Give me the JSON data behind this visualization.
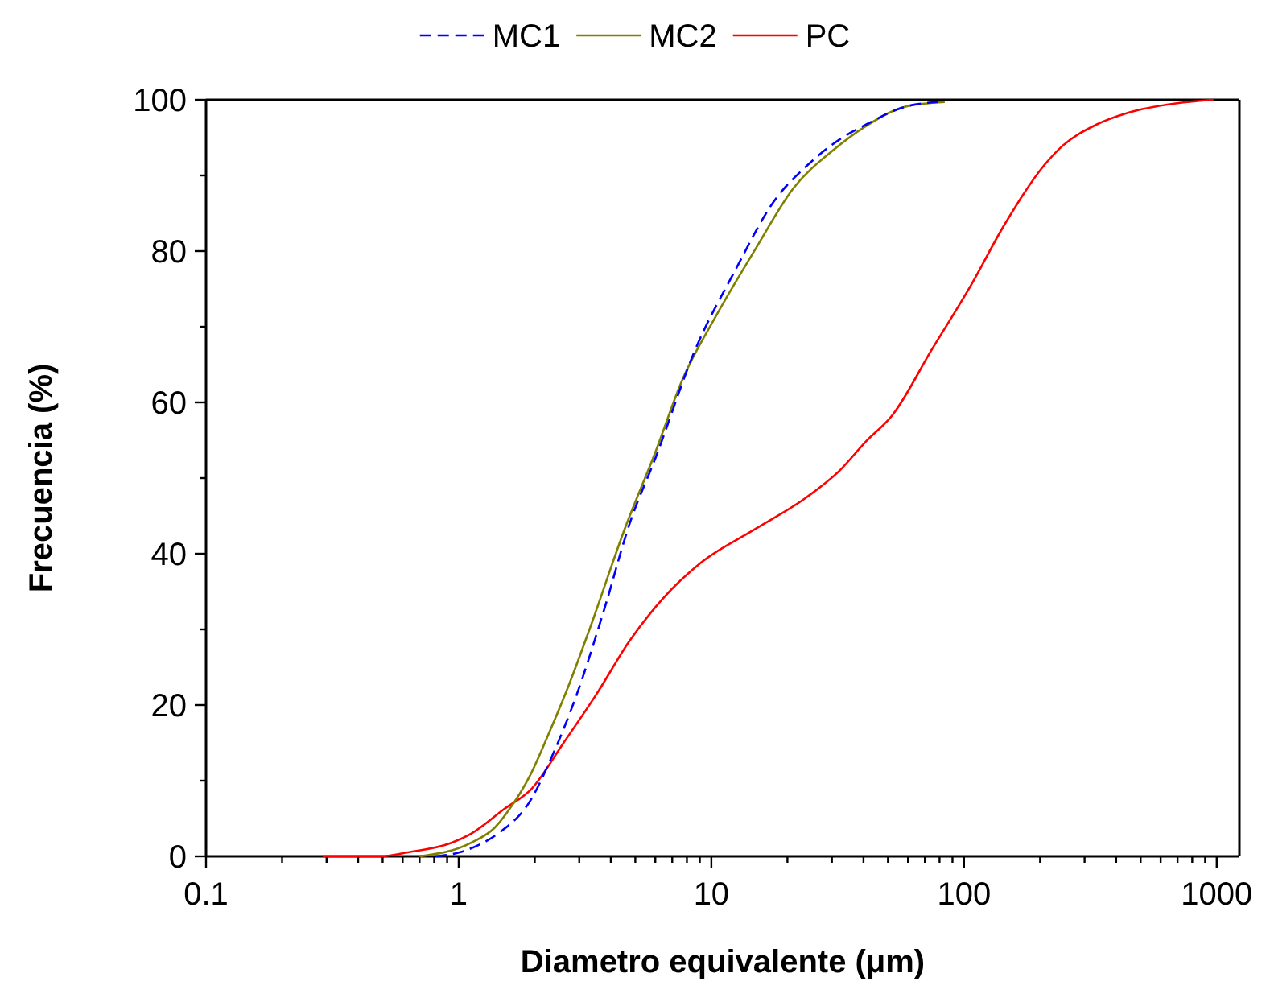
{
  "chart_data": {
    "type": "line",
    "xlabel": "Diametro equivalente (μm)",
    "ylabel": "Frecuencia (%)",
    "log": "x",
    "legend": "top",
    "grid": false,
    "marker": "none",
    "xlim": [
      0.1,
      1230
    ],
    "ylim": [
      0,
      100
    ],
    "xticks": [
      0.1,
      {
        "value": 0.2,
        "label": null
      },
      {
        "value": 0.3,
        "label": null
      },
      {
        "value": 0.4,
        "label": null
      },
      {
        "value": 0.5,
        "label": null
      },
      {
        "value": 0.6,
        "label": null
      },
      {
        "value": 0.7,
        "label": null
      },
      {
        "value": 0.8,
        "label": null
      },
      {
        "value": 0.9,
        "label": null
      },
      1,
      {
        "value": 2,
        "label": null
      },
      {
        "value": 3,
        "label": null
      },
      {
        "value": 4,
        "label": null
      },
      {
        "value": 5,
        "label": null
      },
      {
        "value": 6,
        "label": null
      },
      {
        "value": 7,
        "label": null
      },
      {
        "value": 8,
        "label": null
      },
      {
        "value": 9,
        "label": null
      },
      10,
      {
        "value": 20,
        "label": null
      },
      {
        "value": 30,
        "label": null
      },
      {
        "value": 40,
        "label": null
      },
      {
        "value": 50,
        "label": null
      },
      {
        "value": 60,
        "label": null
      },
      {
        "value": 70,
        "label": null
      },
      {
        "value": 80,
        "label": null
      },
      {
        "value": 90,
        "label": null
      },
      100,
      {
        "value": 200,
        "label": null
      },
      {
        "value": 300,
        "label": null
      },
      {
        "value": 400,
        "label": null
      },
      {
        "value": 500,
        "label": null
      },
      {
        "value": 600,
        "label": null
      },
      {
        "value": 700,
        "label": null
      },
      {
        "value": 800,
        "label": null
      },
      {
        "value": 900,
        "label": null
      },
      1000
    ],
    "yticks": [
      0,
      {
        "value": 10,
        "label": null
      },
      20,
      {
        "value": 30,
        "label": null
      },
      40,
      {
        "value": 50,
        "label": null
      },
      60,
      {
        "value": 70,
        "label": null
      },
      80,
      {
        "value": 90,
        "label": null
      },
      100
    ],
    "series": [
      {
        "name": "MC1",
        "color": "#0000ff",
        "line_style": "dashed",
        "x": [
          0.81,
          1.0,
          1.2,
          1.43,
          1.94,
          2.31,
          2.94,
          3.74,
          4.75,
          6.03,
          8.64,
          12.4,
          17.7,
          23.9,
          32.3,
          40.8,
          58.7,
          79.1
        ],
        "values": [
          0,
          0.5,
          1.5,
          3.0,
          7.6,
          12.8,
          21.5,
          32.3,
          44,
          52.8,
          67,
          77.4,
          86.6,
          91.3,
          94.8,
          96.7,
          99.1,
          99.7
        ]
      },
      {
        "name": "MC2",
        "color": "#808000",
        "line_style": "solid",
        "x": [
          0.7,
          1.12,
          1.39,
          1.57,
          1.91,
          2.27,
          2.74,
          3.31,
          4.53,
          6.03,
          7.68,
          10.3,
          14.9,
          21.1,
          30.5,
          40.8,
          58.7,
          83.9
        ],
        "values": [
          0,
          1.8,
          3.8,
          6,
          10.6,
          16.2,
          22.8,
          30.2,
          43.2,
          53.6,
          63,
          71.1,
          80.2,
          88.3,
          93.4,
          96.5,
          99.1,
          99.7
        ]
      },
      {
        "name": "PC",
        "color": "#ff0000",
        "line_style": "solid",
        "x": [
          0.29,
          0.49,
          0.62,
          0.94,
          1.12,
          1.52,
          1.94,
          2.6,
          3.52,
          4.75,
          6.4,
          9.16,
          14.8,
          23.9,
          32.2,
          40.8,
          52,
          74.6,
          107,
          144,
          207,
          247,
          333,
          447,
          679,
          813,
          971
        ],
        "values": [
          0,
          0,
          0.5,
          1.8,
          3.0,
          6.3,
          8.9,
          15,
          21.5,
          28.5,
          34,
          38.9,
          43.2,
          47.5,
          51,
          54.8,
          58.3,
          67,
          75.6,
          83.4,
          91.3,
          94,
          96.7,
          98.3,
          99.5,
          99.8,
          100
        ]
      }
    ]
  }
}
